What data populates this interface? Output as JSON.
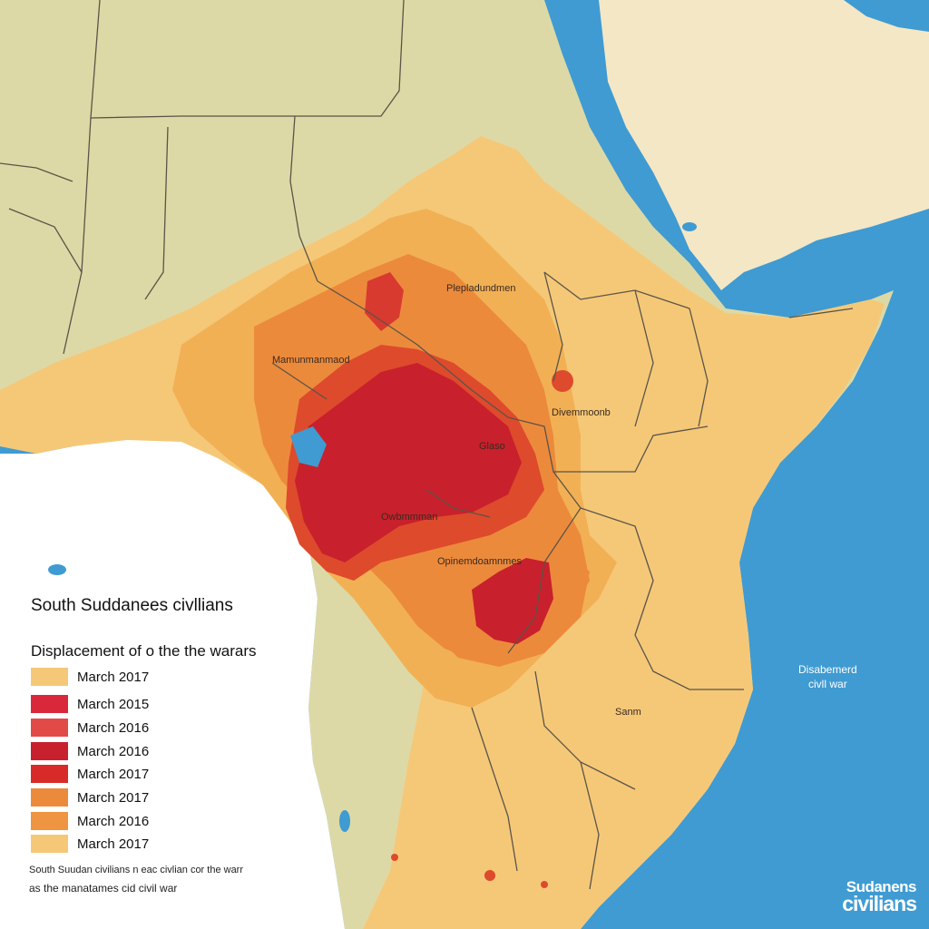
{
  "colors": {
    "ocean": "#3f9bd2",
    "land_out": "#ddd9a6",
    "arabia": "#f4e7c6",
    "land_in": "#f5c878",
    "level1": "#f2b055",
    "level2": "#ec8a3c",
    "level3": "#de4a2c",
    "level4": "#c8202c",
    "border": "#5a5448"
  },
  "map_labels": [
    "Plepladundmen",
    "Mamunmanmaod",
    "Divemmoonb",
    "Glaso",
    "Owbmmman",
    "Opinemdoamnmes",
    "Sanm"
  ],
  "legend": {
    "title": "South Suddanees civllians",
    "subtitle": "Displacement of o the the warars",
    "items": [
      {
        "label": "March 2017",
        "color": "#f5c878"
      },
      {
        "label": "March 2015",
        "color": "#d9283a"
      },
      {
        "label": "March 2016",
        "color": "#e24a48"
      },
      {
        "label": "March 2016",
        "color": "#c8202c"
      },
      {
        "label": "March 2017",
        "color": "#d82a28"
      },
      {
        "label": "March 2017",
        "color": "#ec8a3c"
      },
      {
        "label": "March 2016",
        "color": "#ef9440"
      },
      {
        "label": "March 2017",
        "color": "#f5c878"
      }
    ]
  },
  "source": {
    "line1": "South Suudan civilians n eac civlian cor the warr",
    "line2": "as the manatames cid civil war"
  },
  "sea_label": {
    "line1": "Disabemerd",
    "line2": "civll war"
  },
  "corner_brand": {
    "line1": "Sudanens",
    "line2": "civilians"
  }
}
